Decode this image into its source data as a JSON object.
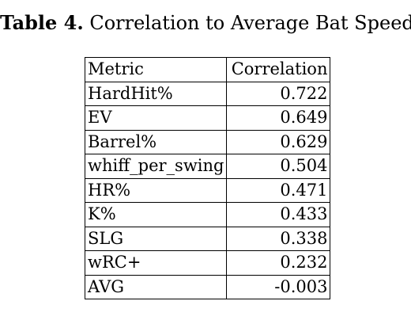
{
  "caption": {
    "label": "Table 4.",
    "title": "Correlation to Average Bat Speed"
  },
  "table": {
    "headers": [
      "Metric",
      "Correlation"
    ],
    "rows": [
      {
        "metric": "HardHit%",
        "correlation": "0.722"
      },
      {
        "metric": "EV",
        "correlation": "0.649"
      },
      {
        "metric": "Barrel%",
        "correlation": "0.629"
      },
      {
        "metric": "whiff_per_swing",
        "correlation": "0.504"
      },
      {
        "metric": "HR%",
        "correlation": "0.471"
      },
      {
        "metric": "K%",
        "correlation": "0.433"
      },
      {
        "metric": "SLG",
        "correlation": "0.338"
      },
      {
        "metric": "wRC+",
        "correlation": "0.232"
      },
      {
        "metric": "AVG",
        "correlation": "-0.003"
      }
    ]
  }
}
